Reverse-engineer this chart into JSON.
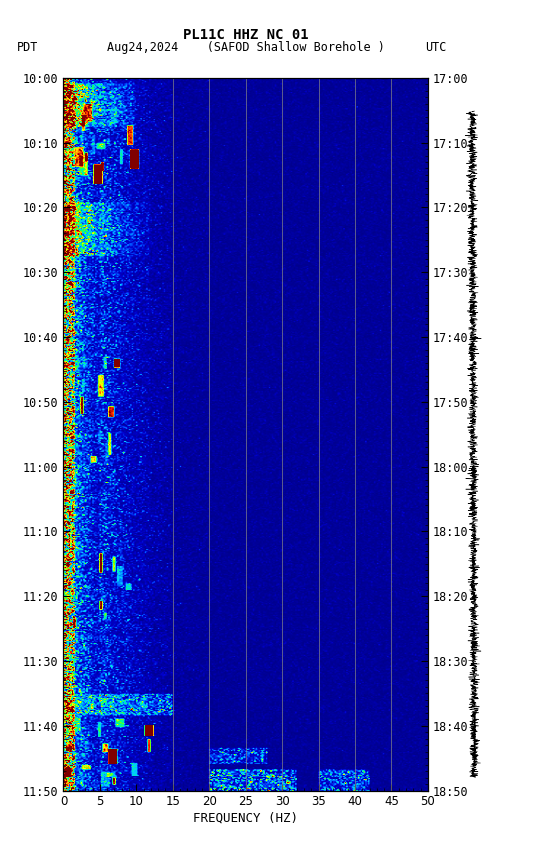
{
  "title_line1": "PL11C HHZ NC 01",
  "title_line2": "Aug24,2024    (SAFOD Shallow Borehole )",
  "label_left": "PDT",
  "label_right": "UTC",
  "xlabel": "FREQUENCY (HZ)",
  "freq_min": 0,
  "freq_max": 50,
  "yticks_pdt": [
    "10:00",
    "10:10",
    "10:20",
    "10:30",
    "10:40",
    "10:50",
    "11:00",
    "11:10",
    "11:20",
    "11:30",
    "11:40",
    "11:50"
  ],
  "yticks_utc": [
    "17:00",
    "17:10",
    "17:20",
    "17:30",
    "17:40",
    "17:50",
    "18:00",
    "18:10",
    "18:20",
    "18:30",
    "18:40",
    "18:50"
  ],
  "freq_gridlines": [
    15,
    20,
    25,
    30,
    35,
    40,
    45
  ],
  "n_time": 660,
  "n_freq": 250,
  "n_minutes": 110
}
